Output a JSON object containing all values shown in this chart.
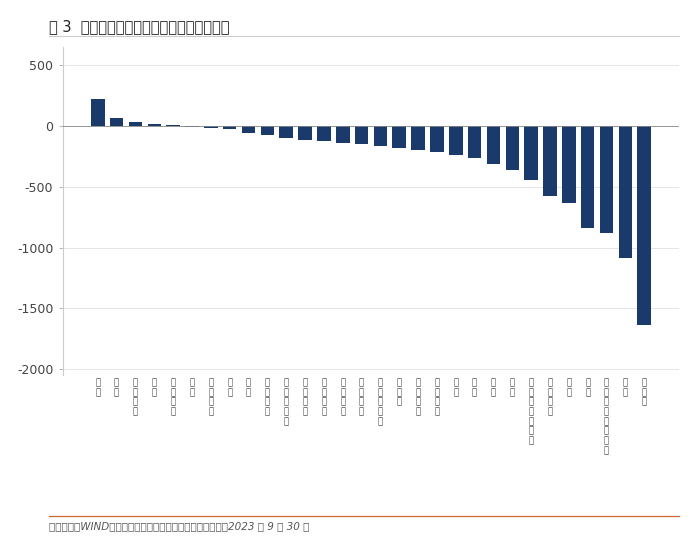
{
  "title": "图 3  中信一级行业主动净买入情况（亿元）",
  "footnote": "数据来源：WIND，上海证泰基金评价研究中心；数据截至：2023 年 9 月 30 日",
  "bar_color": "#1a3a6b",
  "background_color": "#ffffff",
  "ylim": [
    -2050,
    650
  ],
  "yticks": [
    -2000,
    -1500,
    -1000,
    -500,
    0,
    500
  ],
  "categories": [
    "银\n行",
    "煤\n炭",
    "石\n油\n石\n化",
    "钢\n铁",
    "综\n合\n金\n融",
    "综\n合",
    "纺\n织\n服\n装",
    "家\n电",
    "建\n材",
    "交\n通\n运\n输",
    "消\n费\n者\n服\n务",
    "农\n林\n牧\n渔",
    "食\n品\n饮\n料",
    "商\n贸\n零\n售",
    "轻\n工\n制\n造",
    "非\n银\n行\n金\n融",
    "房\n地\n产",
    "有\n色\n金\n属",
    "国\n防\n军\n工",
    "建\n筑",
    "医\n药",
    "通\n信",
    "汽\n车",
    "电\n力\n及\n公\n用\n事\n业",
    "基\n础\n化\n工",
    "传\n媒",
    "电\n子",
    "电\n力\n设\n备\n及\n新\n能\n源",
    "机\n械",
    "计\n算\n机"
  ],
  "values": [
    225,
    65,
    30,
    18,
    8,
    -8,
    -18,
    -28,
    -55,
    -70,
    -100,
    -115,
    -125,
    -140,
    -150,
    -165,
    -180,
    -195,
    -215,
    -240,
    -265,
    -310,
    -360,
    -440,
    -575,
    -630,
    -840,
    -880,
    -1085,
    -1640
  ]
}
